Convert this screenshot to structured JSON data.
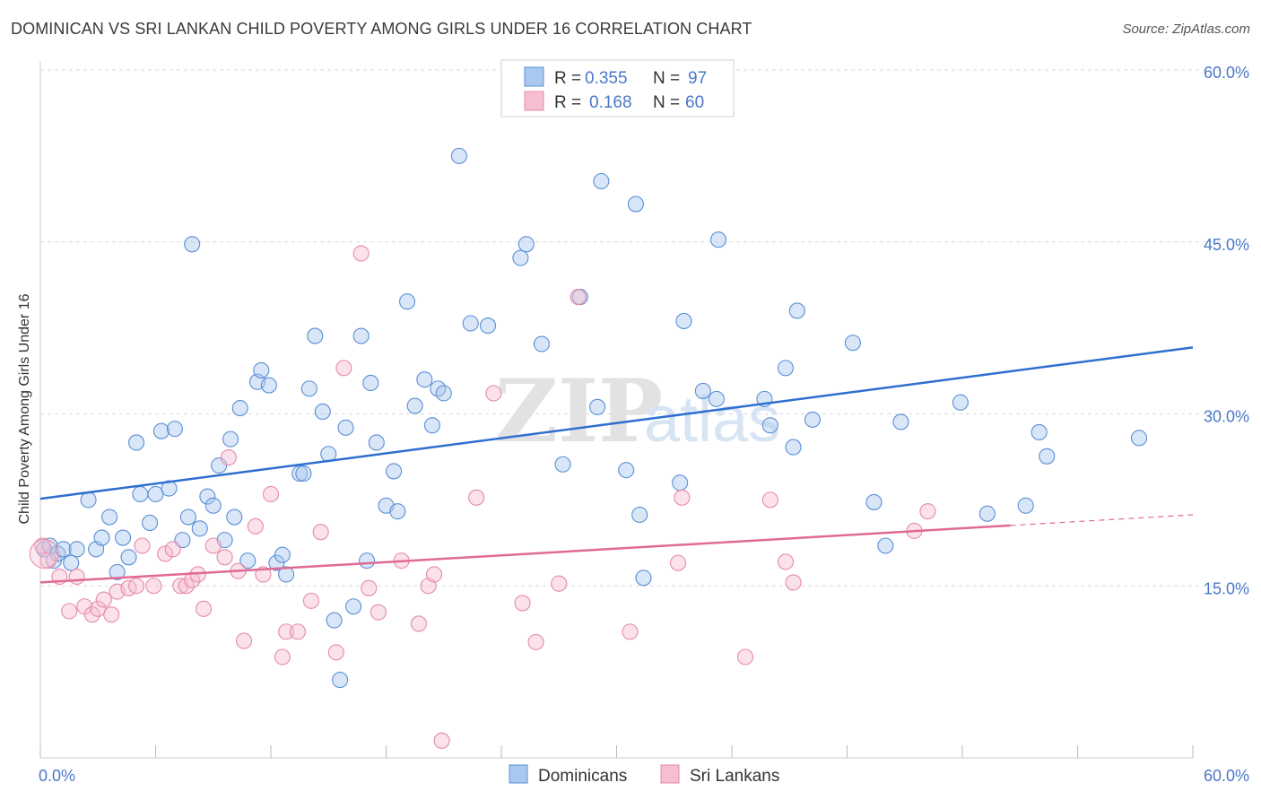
{
  "header": {
    "title": "DOMINICAN VS SRI LANKAN CHILD POVERTY AMONG GIRLS UNDER 16 CORRELATION CHART",
    "source": "Source: ZipAtlas.com"
  },
  "watermark": {
    "zip": "ZIP",
    "atlas": "atlas"
  },
  "colors": {
    "dominicans_fill": "#a9c8ee",
    "dominicans_stroke": "#5b8fd6",
    "dominicans_line": "#2f6fd0",
    "srilankans_fill": "#f6bfd0",
    "srilankans_stroke": "#e58aa8",
    "srilankans_line": "#e06a93",
    "tick_label": "#4a78c9",
    "grid": "#d9d9d9"
  },
  "stats_legend": {
    "rows": [
      {
        "r_label": "R =",
        "r_value": "0.355",
        "n_label": "N =",
        "n_value": "97"
      },
      {
        "r_label": "R =",
        "r_value": "0.168",
        "n_label": "N =",
        "n_value": "60"
      }
    ]
  },
  "bottom_legend": {
    "items": [
      "Dominicans",
      "Sri Lankans"
    ]
  },
  "chart_data": {
    "type": "scatter",
    "title": "DOMINICAN VS SRI LANKAN CHILD POVERTY AMONG GIRLS UNDER 16 CORRELATION CHART",
    "xlabel": "",
    "ylabel": "Child Poverty Among Girls Under 16",
    "xlim": [
      0,
      60
    ],
    "ylim": [
      0,
      60
    ],
    "x_tick_labels": [
      "0.0%",
      "60.0%"
    ],
    "y_ticks": [
      15,
      30,
      45,
      60
    ],
    "y_tick_labels": [
      "15.0%",
      "30.0%",
      "45.0%",
      "60.0%"
    ],
    "grid": true,
    "legend_position": "top-center",
    "series": [
      {
        "name": "Dominicans",
        "r": 0.355,
        "n": 97,
        "trend": {
          "x": [
            0,
            60
          ],
          "y": [
            22.6,
            35.8
          ],
          "dashed_from": null
        },
        "points": [
          [
            0.2,
            18.2
          ],
          [
            0.5,
            18.5
          ],
          [
            0.7,
            17.2
          ],
          [
            0.9,
            17.8
          ],
          [
            1.2,
            18.2
          ],
          [
            1.6,
            17.0
          ],
          [
            1.9,
            18.2
          ],
          [
            2.5,
            22.5
          ],
          [
            2.9,
            18.2
          ],
          [
            3.2,
            19.2
          ],
          [
            3.6,
            21.0
          ],
          [
            4.0,
            16.2
          ],
          [
            4.3,
            19.2
          ],
          [
            4.6,
            17.5
          ],
          [
            5.0,
            27.5
          ],
          [
            5.2,
            23.0
          ],
          [
            5.7,
            20.5
          ],
          [
            6.0,
            23.0
          ],
          [
            6.3,
            28.5
          ],
          [
            6.7,
            23.5
          ],
          [
            7.0,
            28.7
          ],
          [
            7.4,
            19.0
          ],
          [
            7.7,
            21.0
          ],
          [
            7.9,
            44.8
          ],
          [
            8.3,
            20.0
          ],
          [
            8.7,
            22.8
          ],
          [
            9.0,
            22.0
          ],
          [
            9.3,
            25.5
          ],
          [
            9.6,
            19.0
          ],
          [
            9.9,
            27.8
          ],
          [
            10.1,
            21.0
          ],
          [
            10.4,
            30.5
          ],
          [
            10.8,
            17.2
          ],
          [
            11.3,
            32.8
          ],
          [
            11.5,
            33.8
          ],
          [
            11.9,
            32.5
          ],
          [
            12.3,
            17.0
          ],
          [
            12.6,
            17.7
          ],
          [
            12.8,
            16.0
          ],
          [
            13.5,
            24.8
          ],
          [
            13.7,
            24.8
          ],
          [
            14.0,
            32.2
          ],
          [
            14.3,
            36.8
          ],
          [
            14.7,
            30.2
          ],
          [
            15.0,
            26.5
          ],
          [
            15.3,
            12.0
          ],
          [
            15.6,
            6.8
          ],
          [
            15.9,
            28.8
          ],
          [
            16.3,
            13.2
          ],
          [
            16.7,
            36.8
          ],
          [
            17.0,
            17.2
          ],
          [
            17.2,
            32.7
          ],
          [
            17.5,
            27.5
          ],
          [
            18.0,
            22.0
          ],
          [
            18.4,
            25.0
          ],
          [
            18.6,
            21.5
          ],
          [
            19.1,
            39.8
          ],
          [
            19.5,
            30.7
          ],
          [
            20.0,
            33.0
          ],
          [
            20.4,
            29.0
          ],
          [
            20.7,
            32.2
          ],
          [
            21.0,
            31.8
          ],
          [
            21.8,
            52.5
          ],
          [
            22.4,
            37.9
          ],
          [
            23.3,
            37.7
          ],
          [
            25.0,
            43.6
          ],
          [
            25.3,
            44.8
          ],
          [
            26.1,
            36.1
          ],
          [
            27.2,
            25.6
          ],
          [
            28.1,
            40.2
          ],
          [
            29.0,
            30.6
          ],
          [
            29.2,
            50.3
          ],
          [
            30.5,
            25.1
          ],
          [
            31.0,
            48.3
          ],
          [
            31.2,
            21.2
          ],
          [
            31.4,
            15.7
          ],
          [
            33.3,
            24.0
          ],
          [
            33.5,
            38.1
          ],
          [
            34.5,
            32.0
          ],
          [
            35.2,
            31.3
          ],
          [
            35.3,
            45.2
          ],
          [
            37.7,
            31.3
          ],
          [
            38.0,
            29.0
          ],
          [
            38.8,
            34.0
          ],
          [
            39.2,
            27.1
          ],
          [
            39.4,
            39.0
          ],
          [
            40.2,
            29.5
          ],
          [
            42.3,
            36.2
          ],
          [
            43.4,
            22.3
          ],
          [
            44.0,
            18.5
          ],
          [
            44.8,
            29.3
          ],
          [
            47.9,
            31.0
          ],
          [
            49.3,
            21.3
          ],
          [
            51.3,
            22.0
          ],
          [
            52.0,
            28.4
          ],
          [
            52.4,
            26.3
          ],
          [
            57.2,
            27.9
          ]
        ]
      },
      {
        "name": "Sri Lankans",
        "r": 0.168,
        "n": 60,
        "trend": {
          "x": [
            0,
            60
          ],
          "y": [
            15.3,
            21.2
          ],
          "dashed_from": 50.5
        },
        "points": [
          [
            0.1,
            18.5
          ],
          [
            0.4,
            17.2
          ],
          [
            1.0,
            15.8
          ],
          [
            1.5,
            12.8
          ],
          [
            1.9,
            15.8
          ],
          [
            2.3,
            13.2
          ],
          [
            2.7,
            12.5
          ],
          [
            3.0,
            13.0
          ],
          [
            3.3,
            13.8
          ],
          [
            3.7,
            12.5
          ],
          [
            4.0,
            14.5
          ],
          [
            4.6,
            14.8
          ],
          [
            5.0,
            15.0
          ],
          [
            5.3,
            18.5
          ],
          [
            5.9,
            15.0
          ],
          [
            6.5,
            17.8
          ],
          [
            6.9,
            18.2
          ],
          [
            7.3,
            15.0
          ],
          [
            7.6,
            15.0
          ],
          [
            7.9,
            15.5
          ],
          [
            8.2,
            16.0
          ],
          [
            8.5,
            13.0
          ],
          [
            9.0,
            18.5
          ],
          [
            9.6,
            17.5
          ],
          [
            9.8,
            26.2
          ],
          [
            10.3,
            16.3
          ],
          [
            10.6,
            10.2
          ],
          [
            11.2,
            20.2
          ],
          [
            11.6,
            16.0
          ],
          [
            12.0,
            23.0
          ],
          [
            12.6,
            8.8
          ],
          [
            12.8,
            11.0
          ],
          [
            13.4,
            11.0
          ],
          [
            14.1,
            13.7
          ],
          [
            14.6,
            19.7
          ],
          [
            15.4,
            9.2
          ],
          [
            15.8,
            34.0
          ],
          [
            16.7,
            44.0
          ],
          [
            17.1,
            14.8
          ],
          [
            17.6,
            12.7
          ],
          [
            18.8,
            17.2
          ],
          [
            19.7,
            11.7
          ],
          [
            20.2,
            15.0
          ],
          [
            20.5,
            16.0
          ],
          [
            20.9,
            1.5
          ],
          [
            22.7,
            22.7
          ],
          [
            23.6,
            31.8
          ],
          [
            25.1,
            13.5
          ],
          [
            25.8,
            10.1
          ],
          [
            27.0,
            15.2
          ],
          [
            28.0,
            40.2
          ],
          [
            30.7,
            11.0
          ],
          [
            33.2,
            17.0
          ],
          [
            33.4,
            22.7
          ],
          [
            38.0,
            22.5
          ],
          [
            38.8,
            17.1
          ],
          [
            39.2,
            15.3
          ],
          [
            36.7,
            8.8
          ],
          [
            45.5,
            19.8
          ],
          [
            46.2,
            21.5
          ]
        ]
      }
    ]
  }
}
